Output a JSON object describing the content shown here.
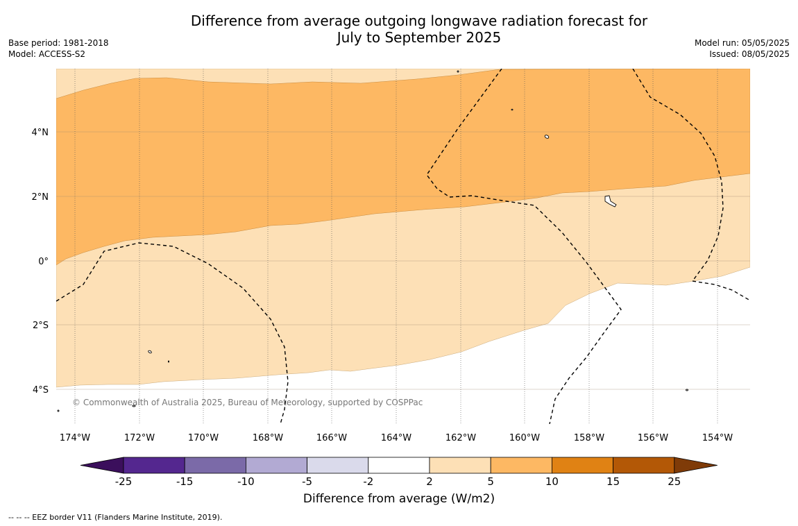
{
  "title_line1": "Difference from average outgoing longwave radiation forecast for",
  "title_line2": "July to September 2025",
  "base_period": "Base period: 1981-2018",
  "model": "Model: ACCESS-S2",
  "model_run": "Model run: 05/05/2025",
  "issued": "Issued: 08/05/2025",
  "copyright": "© Commonwealth of Australia 2025, Bureau of Meteorology, supported by COSPPac",
  "lon_labels": [
    "174°W",
    "172°W",
    "170°W",
    "168°W",
    "166°W",
    "164°W",
    "162°W",
    "160°W",
    "158°W",
    "156°W",
    "154°W"
  ],
  "lat_labels": [
    "4°N",
    "2°N",
    "0°",
    "2°S",
    "4°S"
  ],
  "colorbar": {
    "title": "Difference from average (W/m2)",
    "ticks": [
      "-25",
      "-15",
      "-10",
      "-5",
      "-2",
      "2",
      "5",
      "10",
      "15",
      "25"
    ],
    "colors": [
      "#3b0f5c",
      "#54278f",
      "#7b6aa8",
      "#b2aad3",
      "#dadaeb",
      "#ffffff",
      "#fde0b6",
      "#fdb863",
      "#e08214",
      "#b35806",
      "#7f3b08"
    ]
  },
  "footnote": "--  --  -- EEZ border V11 (Flanders Marine Institute, 2019)."
}
